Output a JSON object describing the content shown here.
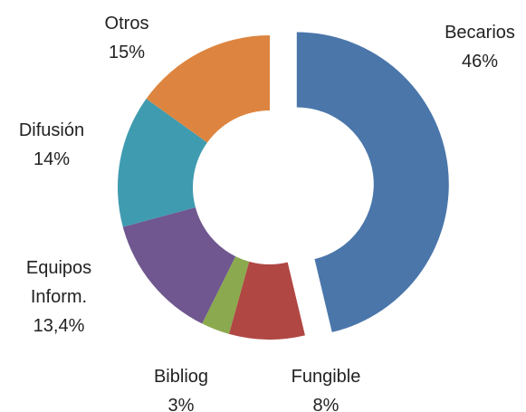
{
  "chart_data": {
    "type": "donut",
    "categories": [
      "Becarios",
      "Fungible",
      "Bibliog",
      "Equipos Inform.",
      "Difusión",
      "Otros"
    ],
    "values": [
      46,
      8,
      3,
      13.4,
      14,
      15
    ],
    "value_labels": [
      "46%",
      "8%",
      "3%",
      "13,4%",
      "14%",
      "15%"
    ],
    "colors": [
      "#4a76aa",
      "#b04743",
      "#8ba94e",
      "#70578f",
      "#3f9bb0",
      "#dd8540"
    ]
  }
}
